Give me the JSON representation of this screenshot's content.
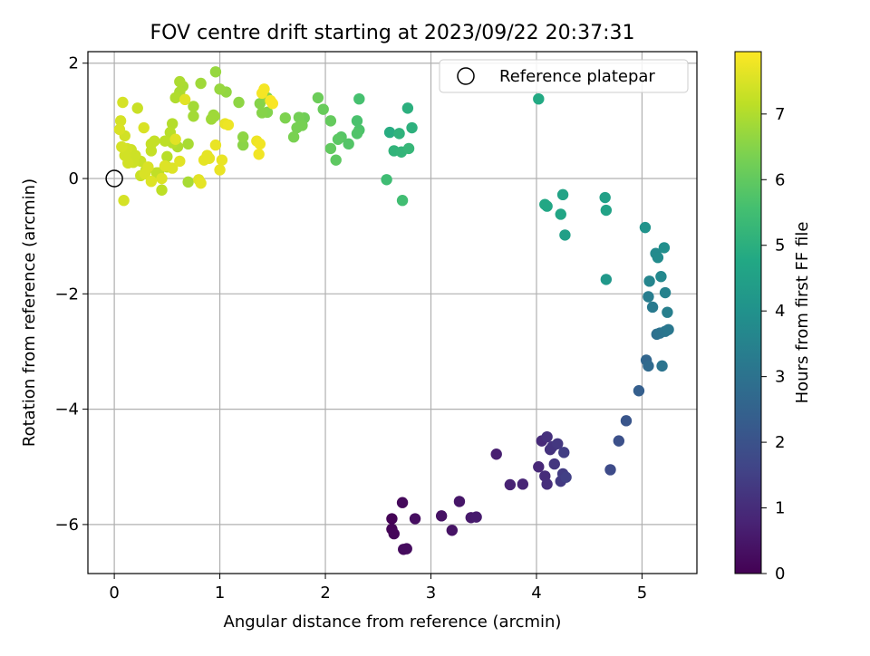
{
  "chart_data": {
    "type": "scatter",
    "title": "FOV centre drift starting at 2023/09/22 20:37:31",
    "xlabel": "Angular distance from reference (arcmin)",
    "ylabel": "Rotation from reference (arcmin)",
    "xlim": [
      -0.25,
      5.52
    ],
    "ylim": [
      -6.85,
      2.2
    ],
    "xticks": [
      0,
      1,
      2,
      3,
      4,
      5
    ],
    "yticks": [
      2,
      0,
      -2,
      -4,
      -6
    ],
    "xtick_labels": [
      "0",
      "1",
      "2",
      "3",
      "4",
      "5"
    ],
    "ytick_labels": [
      "2",
      "0",
      "−2",
      "−4",
      "−6"
    ],
    "grid": true,
    "legend": {
      "position": "top-right",
      "entries": [
        "Reference platepar"
      ]
    },
    "reference_point": {
      "x": 0,
      "y": 0,
      "label": "Reference platepar"
    },
    "colorbar": {
      "label": "Hours from first FF file",
      "colormap": "viridis",
      "range": [
        0,
        7.95
      ],
      "ticks": [
        0,
        1,
        2,
        3,
        4,
        5,
        6,
        7
      ],
      "tick_labels": [
        "0",
        "1",
        "2",
        "3",
        "4",
        "5",
        "6",
        "7"
      ]
    },
    "series": [
      {
        "color_by": "hours",
        "points": [
          [
            2.63,
            -5.9,
            0.05
          ],
          [
            2.63,
            -6.08,
            0.08
          ],
          [
            2.65,
            -6.16,
            0.12
          ],
          [
            2.73,
            -5.62,
            0.18
          ],
          [
            2.74,
            -6.43,
            0.22
          ],
          [
            2.77,
            -6.42,
            0.25
          ],
          [
            2.85,
            -5.9,
            0.3
          ],
          [
            3.1,
            -5.85,
            0.38
          ],
          [
            3.2,
            -6.1,
            0.42
          ],
          [
            3.27,
            -5.6,
            0.48
          ],
          [
            3.38,
            -5.88,
            0.55
          ],
          [
            3.43,
            -5.87,
            0.6
          ],
          [
            3.62,
            -4.78,
            0.7
          ],
          [
            3.75,
            -5.31,
            0.78
          ],
          [
            3.87,
            -5.3,
            0.82
          ],
          [
            4.02,
            -5.0,
            0.9
          ],
          [
            4.05,
            -4.55,
            0.95
          ],
          [
            4.08,
            -5.16,
            1.0
          ],
          [
            4.1,
            -5.3,
            1.05
          ],
          [
            4.1,
            -4.48,
            1.1
          ],
          [
            4.13,
            -4.7,
            1.15
          ],
          [
            4.15,
            -4.65,
            1.2
          ],
          [
            4.17,
            -4.95,
            1.25
          ],
          [
            4.2,
            -4.6,
            1.3
          ],
          [
            4.23,
            -5.25,
            1.35
          ],
          [
            4.25,
            -5.12,
            1.4
          ],
          [
            4.26,
            -4.75,
            1.45
          ],
          [
            4.28,
            -5.18,
            1.5
          ],
          [
            4.7,
            -5.05,
            1.8
          ],
          [
            4.78,
            -4.55,
            1.95
          ],
          [
            4.85,
            -4.2,
            2.1
          ],
          [
            4.97,
            -3.68,
            2.4
          ],
          [
            5.04,
            -3.15,
            2.6
          ],
          [
            5.06,
            -3.25,
            2.75
          ],
          [
            5.14,
            -2.7,
            2.9
          ],
          [
            5.17,
            -2.68,
            3.0
          ],
          [
            5.19,
            -3.25,
            3.05
          ],
          [
            5.22,
            -2.65,
            3.1
          ],
          [
            5.25,
            -2.62,
            3.15
          ],
          [
            5.1,
            -2.23,
            3.25
          ],
          [
            5.06,
            -2.05,
            3.35
          ],
          [
            5.24,
            -2.32,
            3.4
          ],
          [
            5.22,
            -1.98,
            3.5
          ],
          [
            5.07,
            -1.78,
            3.6
          ],
          [
            5.18,
            -1.7,
            3.7
          ],
          [
            5.13,
            -1.3,
            3.75
          ],
          [
            5.15,
            -1.37,
            3.8
          ],
          [
            5.21,
            -1.2,
            3.9
          ],
          [
            5.03,
            -0.85,
            4.05
          ],
          [
            4.66,
            -1.75,
            4.2
          ],
          [
            4.27,
            -0.98,
            4.45
          ],
          [
            4.25,
            -0.28,
            4.6
          ],
          [
            4.23,
            -0.62,
            4.65
          ],
          [
            4.1,
            -0.48,
            4.7
          ],
          [
            4.08,
            -0.45,
            4.75
          ],
          [
            4.66,
            -0.55,
            4.55
          ],
          [
            4.65,
            -0.33,
            4.5
          ],
          [
            4.02,
            1.38,
            4.8
          ],
          [
            2.61,
            0.8,
            4.9
          ],
          [
            2.78,
            1.22,
            5.0
          ],
          [
            2.82,
            0.88,
            5.05
          ],
          [
            2.7,
            0.78,
            5.1
          ],
          [
            2.65,
            0.48,
            5.15
          ],
          [
            2.72,
            0.46,
            5.2
          ],
          [
            2.79,
            0.52,
            5.25
          ],
          [
            2.58,
            -0.02,
            5.45
          ],
          [
            2.73,
            -0.38,
            5.5
          ],
          [
            2.32,
            1.38,
            5.6
          ],
          [
            2.3,
            1.0,
            5.65
          ],
          [
            2.32,
            0.84,
            5.7
          ],
          [
            2.3,
            0.78,
            5.75
          ],
          [
            2.22,
            0.6,
            5.8
          ],
          [
            2.15,
            0.72,
            5.85
          ],
          [
            2.12,
            0.68,
            5.9
          ],
          [
            2.1,
            0.32,
            5.95
          ],
          [
            2.05,
            0.52,
            6.0
          ],
          [
            2.05,
            1.0,
            6.05
          ],
          [
            1.98,
            1.2,
            6.1
          ],
          [
            1.93,
            1.4,
            6.15
          ],
          [
            1.8,
            1.05,
            6.2
          ],
          [
            1.75,
            1.06,
            6.25
          ],
          [
            1.78,
            0.92,
            6.3
          ],
          [
            1.73,
            0.88,
            6.3
          ],
          [
            1.7,
            0.72,
            6.35
          ],
          [
            1.62,
            1.05,
            6.4
          ],
          [
            1.45,
            1.15,
            6.45
          ],
          [
            1.4,
            1.14,
            6.5
          ],
          [
            1.38,
            1.3,
            6.5
          ],
          [
            1.45,
            1.4,
            6.55
          ],
          [
            1.22,
            0.58,
            6.55
          ],
          [
            1.22,
            0.72,
            6.6
          ],
          [
            1.18,
            1.32,
            6.6
          ],
          [
            1.06,
            1.5,
            6.65
          ],
          [
            1.0,
            1.55,
            6.7
          ],
          [
            0.96,
            1.85,
            6.7
          ],
          [
            0.94,
            1.1,
            6.75
          ],
          [
            0.95,
            1.08,
            6.8
          ],
          [
            0.92,
            1.03,
            6.8
          ],
          [
            0.82,
            1.65,
            6.8
          ],
          [
            0.75,
            1.25,
            6.85
          ],
          [
            0.75,
            1.08,
            6.85
          ],
          [
            0.7,
            0.6,
            6.9
          ],
          [
            0.7,
            -0.06,
            6.9
          ],
          [
            0.65,
            1.6,
            6.9
          ],
          [
            0.62,
            1.68,
            6.95
          ],
          [
            0.62,
            1.5,
            6.95
          ],
          [
            0.58,
            1.4,
            7.0
          ],
          [
            0.6,
            0.55,
            7.0
          ],
          [
            0.55,
            0.95,
            7.05
          ],
          [
            0.55,
            0.62,
            7.1
          ],
          [
            0.53,
            0.8,
            7.1
          ],
          [
            0.5,
            0.38,
            7.1
          ],
          [
            0.5,
            0.2,
            7.15
          ],
          [
            0.48,
            0.65,
            7.15
          ],
          [
            0.45,
            -0.2,
            7.15
          ],
          [
            0.42,
            0.1,
            7.2
          ],
          [
            0.4,
            0.1,
            7.2
          ],
          [
            0.38,
            0.65,
            7.25
          ],
          [
            0.35,
            0.6,
            7.25
          ],
          [
            0.35,
            0.48,
            7.25
          ],
          [
            0.3,
            0.15,
            7.3
          ],
          [
            0.25,
            0.05,
            7.3
          ],
          [
            0.25,
            0.3,
            7.3
          ],
          [
            0.22,
            1.22,
            7.3
          ],
          [
            0.2,
            0.4,
            7.35
          ],
          [
            0.18,
            0.28,
            7.35
          ],
          [
            0.16,
            0.5,
            7.35
          ],
          [
            0.15,
            0.38,
            7.35
          ],
          [
            0.13,
            0.27,
            7.4
          ],
          [
            0.12,
            0.52,
            7.4
          ],
          [
            0.1,
            0.4,
            7.4
          ],
          [
            0.1,
            0.74,
            7.4
          ],
          [
            0.09,
            -0.38,
            7.45
          ],
          [
            0.08,
            1.32,
            7.45
          ],
          [
            0.07,
            0.55,
            7.45
          ],
          [
            0.06,
            1.0,
            7.45
          ],
          [
            0.05,
            0.85,
            7.5
          ],
          [
            0.28,
            0.88,
            7.5
          ],
          [
            0.29,
            0.08,
            7.5
          ],
          [
            0.32,
            0.2,
            7.5
          ],
          [
            0.35,
            -0.05,
            7.55
          ],
          [
            0.45,
            0.0,
            7.55
          ],
          [
            0.48,
            0.22,
            7.55
          ],
          [
            0.55,
            0.18,
            7.55
          ],
          [
            0.58,
            0.68,
            7.6
          ],
          [
            0.62,
            0.3,
            7.6
          ],
          [
            0.67,
            1.37,
            7.6
          ],
          [
            0.8,
            -0.02,
            7.6
          ],
          [
            0.82,
            -0.08,
            7.65
          ],
          [
            0.85,
            0.32,
            7.65
          ],
          [
            0.88,
            0.4,
            7.65
          ],
          [
            0.9,
            0.35,
            7.65
          ],
          [
            0.96,
            0.58,
            7.7
          ],
          [
            1.0,
            0.15,
            7.7
          ],
          [
            1.02,
            0.32,
            7.7
          ],
          [
            1.05,
            0.95,
            7.7
          ],
          [
            1.08,
            0.93,
            7.75
          ],
          [
            1.35,
            0.65,
            7.75
          ],
          [
            1.37,
            0.42,
            7.8
          ],
          [
            1.38,
            0.6,
            7.8
          ],
          [
            1.4,
            1.48,
            7.85
          ],
          [
            1.42,
            1.55,
            7.85
          ],
          [
            1.48,
            1.35,
            7.9
          ],
          [
            1.5,
            1.3,
            7.9
          ]
        ]
      }
    ]
  }
}
